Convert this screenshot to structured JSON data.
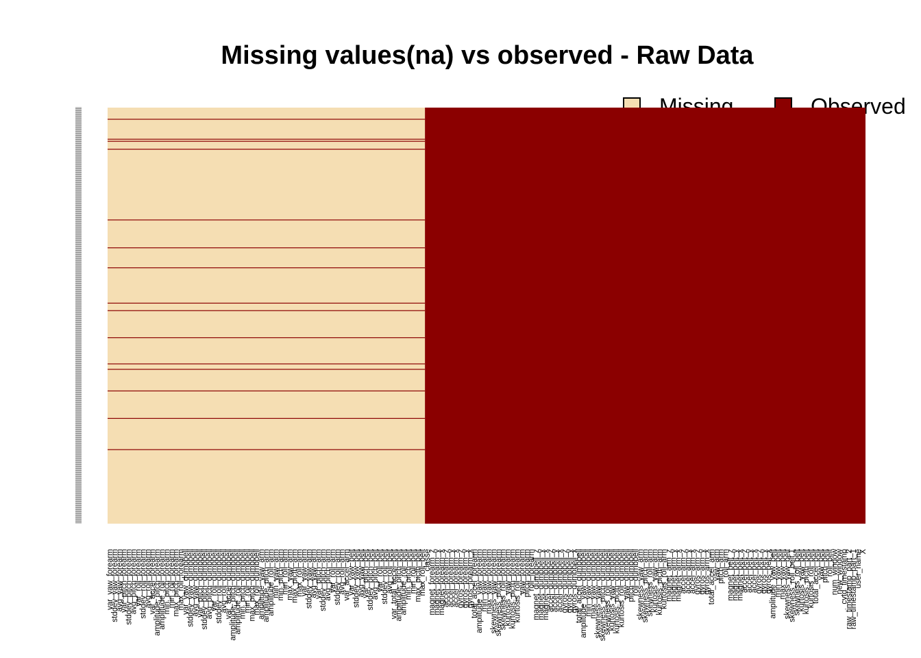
{
  "chart_data": {
    "type": "heatmap",
    "title": "Missing values(na) vs observed - Raw Data",
    "legend": {
      "position": "top-right",
      "items": [
        {
          "label": "Missing",
          "color": "#f5deb3"
        },
        {
          "label": "Observed",
          "color": "#8b0000"
        }
      ]
    },
    "colors": {
      "missing": "#f5deb3",
      "observed": "#8b0000"
    },
    "grid": false,
    "missing_column_count": 67,
    "observed_column_count": 93,
    "observed_row_fractions_in_missing_block": [
      0.028,
      0.076,
      0.081,
      0.1,
      0.27,
      0.337,
      0.385,
      0.47,
      0.488,
      0.553,
      0.616,
      0.629,
      0.681,
      0.747,
      0.822
    ],
    "columns": [
      "var_yaw_forearm",
      "stddev_yaw_forearm",
      "avg_yaw_forearm",
      "var_pitch_forearm",
      "stddev_pitch_forearm",
      "avg_pitch_forearm",
      "var_roll_forearm",
      "stddev_roll_forearm",
      "avg_roll_forearm",
      "var_accel_forearm",
      "amplitude_pitch_forearm",
      "amplitude_roll_forearm",
      "min_pitch_forearm",
      "min_roll_forearm",
      "max_pitch_forearm",
      "max_roll_forearm",
      "var_yaw_dumbbell",
      "stddev_yaw_dumbbell",
      "avg_yaw_dumbbell",
      "var_pitch_dumbbell",
      "stddev_pitch_dumbbell",
      "avg_pitch_dumbbell",
      "var_roll_dumbbell",
      "stddev_roll_dumbbell",
      "avg_roll_dumbbell",
      "var_accel_dumbbell",
      "amplitude_pitch_dumbbell",
      "amplitude_roll_dumbbell",
      "min_pitch_dumbbell",
      "min_roll_dumbbell",
      "max_pitch_dumbbell",
      "max_roll_dumbbell",
      "amplitude_yaw_arm",
      "amplitude_pitch_arm",
      "amplitude_roll_arm",
      "min_yaw_arm",
      "min_pitch_arm",
      "min_roll_arm",
      "max_yaw_arm",
      "max_picth_arm",
      "max_roll_arm",
      "var_yaw_arm",
      "stddev_yaw_arm",
      "avg_yaw_arm",
      "var_pitch_arm",
      "stddev_pitch_arm",
      "avg_pitch_arm",
      "var_roll_arm",
      "stddev_roll_arm",
      "avg_roll_arm",
      "var_accel_arm",
      "var_yaw_belt",
      "stddev_yaw_belt",
      "avg_yaw_belt",
      "var_pitch_belt",
      "stddev_pitch_belt",
      "avg_pitch_belt",
      "var_roll_belt",
      "stddev_roll_belt",
      "avg_roll_belt",
      "var_total_accel_belt",
      "amplitude_pitch_belt",
      "amplitude_roll_belt",
      "min_pitch_belt",
      "min_roll_belt",
      "max_picth_belt",
      "max_roll_belt",
      "classe",
      "magnet_forearm_z",
      "magnet_forearm_y",
      "magnet_forearm_x",
      "accel_forearm_z",
      "accel_forearm_y",
      "accel_forearm_x",
      "gyros_forearm_z",
      "gyros_forearm_y",
      "gyros_forearm_x",
      "total_accel_forearm",
      "amplitude_yaw_forearm",
      "min_yaw_forearm",
      "max_yaw_forearm",
      "skewness_yaw_forearm",
      "skewness_pitch_forearm",
      "skewness_roll_forearm",
      "kurtosis_yaw_forearm",
      "kurtosis_picth_forearm",
      "kurtosis_roll_forearm",
      "yaw_forearm",
      "pitch_forearm",
      "roll_forearm",
      "magnet_dumbbell_z",
      "magnet_dumbbell_y",
      "magnet_dumbbell_x",
      "accel_dumbbell_z",
      "accel_dumbbell_y",
      "accel_dumbbell_x",
      "gyros_dumbbell_z",
      "gyros_dumbbell_y",
      "gyros_dumbbell_x",
      "total_accel_dumbbell",
      "amplitude_yaw_dumbbell",
      "min_yaw_dumbbell",
      "max_yaw_dumbbell",
      "skewness_yaw_dumbbell",
      "skewness_pitch_dumbbell",
      "skewness_roll_dumbbell",
      "kurtosis_yaw_dumbbell",
      "kurtosis_picth_dumbbell",
      "kurtosis_roll_dumbbell",
      "yaw_dumbbell",
      "pitch_dumbbell",
      "roll_dumbbell",
      "skewness_yaw_arm",
      "skewness_pitch_arm",
      "skewness_roll_arm",
      "kurtosis_yaw_arm",
      "kurtosis_picth_arm",
      "kurtosis_roll_arm",
      "magnet_arm_z",
      "magnet_arm_y",
      "magnet_arm_x",
      "accel_arm_z",
      "accel_arm_y",
      "accel_arm_x",
      "gyros_arm_z",
      "gyros_arm_y",
      "gyros_arm_x",
      "total_accel_arm",
      "yaw_arm",
      "pitch_arm",
      "roll_arm",
      "magnet_belt_z",
      "magnet_belt_y",
      "magnet_belt_x",
      "accel_belt_z",
      "accel_belt_y",
      "accel_belt_x",
      "gyros_belt_z",
      "gyros_belt_y",
      "gyros_belt_x",
      "amplitude_yaw_belt",
      "min_yaw_belt",
      "max_yaw_belt",
      "skewness_yaw_belt",
      "skewness_roll_belt.1",
      "skewness_roll_belt",
      "kurtosis_yaw_belt",
      "kurtosis_picth_belt",
      "kurtosis_roll_belt",
      "total_accel_belt",
      "yaw_belt",
      "pitch_belt",
      "roll_belt",
      "num_window",
      "new_window",
      "cvtd_timestamp",
      "raw_timestamp_part_2",
      "raw_timestamp_part_1",
      "user_name",
      "X"
    ]
  }
}
